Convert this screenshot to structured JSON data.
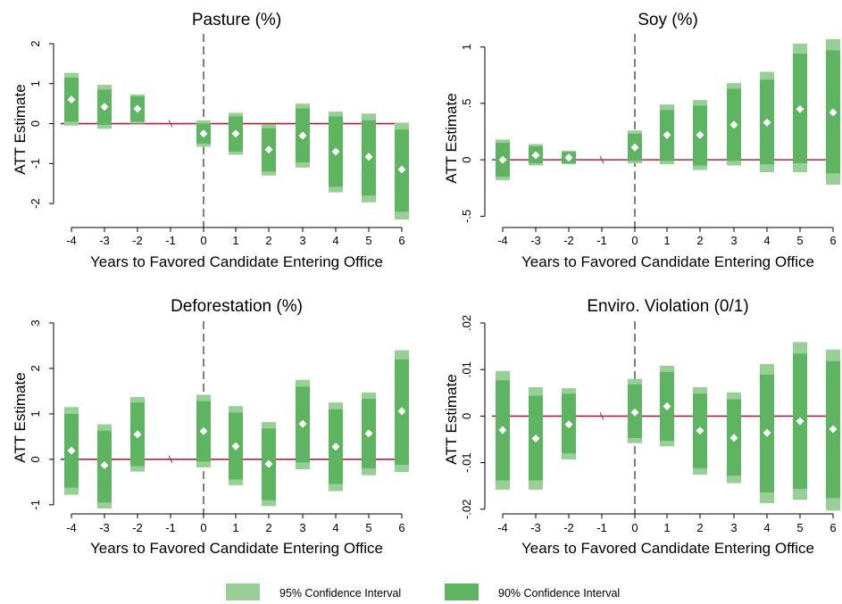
{
  "colors": {
    "ci95": "#97CF97",
    "ci90": "#5FB462",
    "zero_line": "#A9243F",
    "point": "#ffffff",
    "axis": "#000000"
  },
  "legend": {
    "ci95_label": "95% Confidence Interval",
    "ci90_label": "90% Confidence Interval"
  },
  "chart_data": [
    {
      "type": "errorbar",
      "title": "Pasture (%)",
      "xlabel": "Years to Favored Candidate Entering Office",
      "ylabel": "ATT Estimate",
      "ylim": [
        -2.6,
        2.2
      ],
      "yticks": [
        -2,
        -1,
        0,
        1,
        2
      ],
      "ytick_labels": [
        "-2",
        "-1",
        "0",
        "1",
        "2"
      ],
      "xticks": [
        -4,
        -3,
        -2,
        -1,
        0,
        1,
        2,
        3,
        4,
        5,
        6
      ],
      "ref_x": 0,
      "points": [
        {
          "x": -4,
          "est": 0.6,
          "lo90": 0.05,
          "hi90": 1.15,
          "lo95": -0.05,
          "hi95": 1.27
        },
        {
          "x": -3,
          "est": 0.42,
          "lo90": -0.03,
          "hi90": 0.85,
          "lo95": -0.13,
          "hi95": 0.97
        },
        {
          "x": -2,
          "est": 0.37,
          "lo90": 0.05,
          "hi90": 0.68,
          "lo95": 0.0,
          "hi95": 0.73
        },
        {
          "x": -1,
          "est": 0,
          "lo90": 0,
          "hi90": 0,
          "lo95": 0,
          "hi95": 0,
          "omitted": true
        },
        {
          "x": 0,
          "est": -0.25,
          "lo90": -0.5,
          "hi90": 0.0,
          "lo95": -0.58,
          "hi95": 0.08
        },
        {
          "x": 1,
          "est": -0.25,
          "lo90": -0.7,
          "hi90": 0.18,
          "lo95": -0.78,
          "hi95": 0.27
        },
        {
          "x": 2,
          "est": -0.65,
          "lo90": -1.2,
          "hi90": -0.12,
          "lo95": -1.3,
          "hi95": -0.02
        },
        {
          "x": 3,
          "est": -0.3,
          "lo90": -0.97,
          "hi90": 0.38,
          "lo95": -1.1,
          "hi95": 0.5
        },
        {
          "x": 4,
          "est": -0.7,
          "lo90": -1.58,
          "hi90": 0.18,
          "lo95": -1.72,
          "hi95": 0.3
        },
        {
          "x": 5,
          "est": -0.83,
          "lo90": -1.8,
          "hi90": 0.08,
          "lo95": -1.97,
          "hi95": 0.25
        },
        {
          "x": 6,
          "est": -1.15,
          "lo90": -2.2,
          "hi90": -0.15,
          "lo95": -2.4,
          "hi95": 0.02
        }
      ]
    },
    {
      "type": "errorbar",
      "title": "Soy (%)",
      "xlabel": "Years to Favored Candidate Entering Office",
      "ylabel": "ATT Estimate",
      "ylim": [
        -0.6,
        1.1
      ],
      "yticks": [
        -0.5,
        0,
        0.5,
        1
      ],
      "ytick_labels": [
        "-.5",
        "0",
        ".5",
        "1"
      ],
      "xticks": [
        -4,
        -3,
        -2,
        -1,
        0,
        1,
        2,
        3,
        4,
        5,
        6
      ],
      "ref_x": 0,
      "points": [
        {
          "x": -4,
          "est": 0.0,
          "lo90": -0.15,
          "hi90": 0.15,
          "lo95": -0.18,
          "hi95": 0.18
        },
        {
          "x": -3,
          "est": 0.04,
          "lo90": -0.03,
          "hi90": 0.12,
          "lo95": -0.05,
          "hi95": 0.14
        },
        {
          "x": -2,
          "est": 0.02,
          "lo90": -0.03,
          "hi90": 0.07,
          "lo95": -0.04,
          "hi95": 0.08
        },
        {
          "x": -1,
          "est": 0,
          "lo90": 0,
          "hi90": 0,
          "lo95": 0,
          "hi95": 0,
          "omitted": true
        },
        {
          "x": 0,
          "est": 0.11,
          "lo90": -0.01,
          "hi90": 0.23,
          "lo95": -0.03,
          "hi95": 0.26
        },
        {
          "x": 1,
          "est": 0.22,
          "lo90": -0.01,
          "hi90": 0.44,
          "lo95": -0.04,
          "hi95": 0.49
        },
        {
          "x": 2,
          "est": 0.22,
          "lo90": -0.05,
          "hi90": 0.48,
          "lo95": -0.09,
          "hi95": 0.53
        },
        {
          "x": 3,
          "est": 0.31,
          "lo90": -0.01,
          "hi90": 0.63,
          "lo95": -0.05,
          "hi95": 0.68
        },
        {
          "x": 4,
          "est": 0.33,
          "lo90": -0.04,
          "hi90": 0.71,
          "lo95": -0.11,
          "hi95": 0.78
        },
        {
          "x": 5,
          "est": 0.45,
          "lo90": -0.03,
          "hi90": 0.94,
          "lo95": -0.11,
          "hi95": 1.03
        },
        {
          "x": 6,
          "est": 0.42,
          "lo90": -0.12,
          "hi90": 0.97,
          "lo95": -0.22,
          "hi95": 1.07
        }
      ]
    },
    {
      "type": "errorbar",
      "title": "Deforestation (%)",
      "xlabel": "Years to Favored Candidate Entering Office",
      "ylabel": "ATT Estimate",
      "ylim": [
        -1.2,
        3.0
      ],
      "yticks": [
        -1,
        0,
        1,
        2,
        3
      ],
      "ytick_labels": [
        "-1",
        "0",
        "1",
        "2",
        "3"
      ],
      "xticks": [
        -4,
        -3,
        -2,
        -1,
        0,
        1,
        2,
        3,
        4,
        5,
        6
      ],
      "ref_x": 0,
      "points": [
        {
          "x": -4,
          "est": 0.19,
          "lo90": -0.62,
          "hi90": 1.0,
          "lo95": -0.78,
          "hi95": 1.15
        },
        {
          "x": -3,
          "est": -0.13,
          "lo90": -0.95,
          "hi90": 0.63,
          "lo95": -1.08,
          "hi95": 0.77
        },
        {
          "x": -2,
          "est": 0.55,
          "lo90": -0.15,
          "hi90": 1.25,
          "lo95": -0.27,
          "hi95": 1.37
        },
        {
          "x": -1,
          "est": 0,
          "lo90": 0,
          "hi90": 0,
          "lo95": 0,
          "hi95": 0,
          "omitted": true
        },
        {
          "x": 0,
          "est": 0.62,
          "lo90": -0.05,
          "hi90": 1.28,
          "lo95": -0.18,
          "hi95": 1.42
        },
        {
          "x": 1,
          "est": 0.29,
          "lo90": -0.44,
          "hi90": 1.03,
          "lo95": -0.57,
          "hi95": 1.17
        },
        {
          "x": 2,
          "est": -0.1,
          "lo90": -0.9,
          "hi90": 0.68,
          "lo95": -1.03,
          "hi95": 0.82
        },
        {
          "x": 3,
          "est": 0.78,
          "lo90": -0.07,
          "hi90": 1.6,
          "lo95": -0.22,
          "hi95": 1.75
        },
        {
          "x": 4,
          "est": 0.28,
          "lo90": -0.54,
          "hi90": 1.1,
          "lo95": -0.7,
          "hi95": 1.25
        },
        {
          "x": 5,
          "est": 0.57,
          "lo90": -0.2,
          "hi90": 1.33,
          "lo95": -0.35,
          "hi95": 1.47
        },
        {
          "x": 6,
          "est": 1.06,
          "lo90": -0.12,
          "hi90": 2.2,
          "lo95": -0.28,
          "hi95": 2.4
        }
      ]
    },
    {
      "type": "errorbar",
      "title": "Enviro. Violation (0/1)",
      "xlabel": "Years to Favored Candidate Entering Office",
      "ylabel": "ATT Estimate",
      "ylim": [
        -0.021,
        0.02
      ],
      "yticks": [
        -0.02,
        -0.01,
        0,
        0.01,
        0.02
      ],
      "ytick_labels": [
        "-.02",
        "-.01",
        "0",
        ".01",
        ".02"
      ],
      "xticks": [
        -4,
        -3,
        -2,
        -1,
        0,
        1,
        2,
        3,
        4,
        5,
        6
      ],
      "ref_x": 0,
      "points": [
        {
          "x": -4,
          "est": -0.003,
          "lo90": -0.0138,
          "hi90": 0.0077,
          "lo95": -0.0158,
          "hi95": 0.0097
        },
        {
          "x": -3,
          "est": -0.0048,
          "lo90": -0.0138,
          "hi90": 0.0044,
          "lo95": -0.0158,
          "hi95": 0.0062
        },
        {
          "x": -2,
          "est": -0.0018,
          "lo90": -0.008,
          "hi90": 0.0048,
          "lo95": -0.0093,
          "hi95": 0.006
        },
        {
          "x": -1,
          "est": 0,
          "lo90": 0,
          "hi90": 0,
          "lo95": 0,
          "hi95": 0,
          "omitted": true
        },
        {
          "x": 0,
          "est": 0.0008,
          "lo90": -0.0047,
          "hi90": 0.0068,
          "lo95": -0.0058,
          "hi95": 0.008
        },
        {
          "x": 1,
          "est": 0.0021,
          "lo90": -0.0053,
          "hi90": 0.0095,
          "lo95": -0.0065,
          "hi95": 0.0108
        },
        {
          "x": 2,
          "est": -0.0031,
          "lo90": -0.0112,
          "hi90": 0.0048,
          "lo95": -0.0126,
          "hi95": 0.0062
        },
        {
          "x": 3,
          "est": -0.0047,
          "lo90": -0.0128,
          "hi90": 0.0036,
          "lo95": -0.0144,
          "hi95": 0.0051
        },
        {
          "x": 4,
          "est": -0.0036,
          "lo90": -0.0164,
          "hi90": 0.0089,
          "lo95": -0.0187,
          "hi95": 0.0112
        },
        {
          "x": 5,
          "est": -0.0011,
          "lo90": -0.0156,
          "hi90": 0.0134,
          "lo95": -0.018,
          "hi95": 0.0159
        },
        {
          "x": 6,
          "est": -0.0028,
          "lo90": -0.0176,
          "hi90": 0.0118,
          "lo95": -0.0203,
          "hi95": 0.0143
        }
      ]
    }
  ]
}
